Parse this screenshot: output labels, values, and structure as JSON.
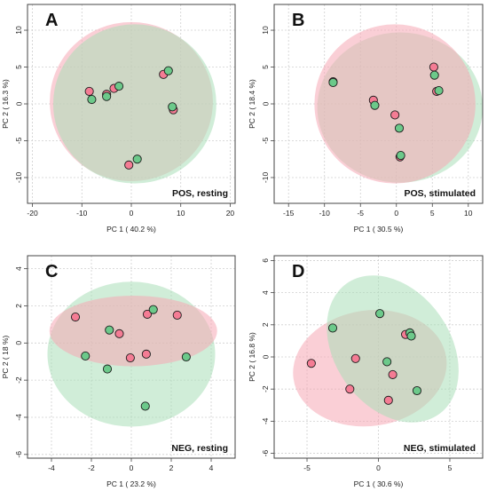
{
  "colors": {
    "group_pink": "#f47c94",
    "group_green": "#6cc98a",
    "ellipse_pink": "#f6a7b5",
    "ellipse_green": "#a9dfb8",
    "overlap": "#c8ab98"
  },
  "chart_data": [
    {
      "type": "scatter",
      "panel": "A",
      "annotation": "POS, resting",
      "xlabel": "PC 1 ( 40.2 %)",
      "ylabel": "PC 2 ( 16.3 %)",
      "xlim": [
        -21,
        21
      ],
      "ylim": [
        -13.5,
        13.5
      ],
      "xticks": [
        -20,
        -10,
        0,
        10,
        20
      ],
      "yticks": [
        -10,
        -5,
        0,
        5,
        10
      ],
      "grid": true,
      "ellipses": [
        {
          "color": "pink",
          "cx": 0.0,
          "cy": 0.3,
          "rx": 16.5,
          "ry": 10.8,
          "angle": 0
        },
        {
          "color": "green",
          "cx": 0.7,
          "cy": 0.0,
          "rx": 16.5,
          "ry": 10.8,
          "angle": 0
        }
      ],
      "series": [
        {
          "color": "pink",
          "x": [
            -8.5,
            -5,
            -3.5,
            6.5,
            8.5,
            -0.5
          ],
          "y": [
            1.7,
            1.3,
            2.1,
            4.0,
            -0.8,
            -8.3
          ]
        },
        {
          "color": "green",
          "x": [
            -8,
            -5,
            -2.5,
            7.5,
            8.3,
            1.2
          ],
          "y": [
            0.6,
            1.0,
            2.4,
            4.5,
            -0.4,
            -7.5
          ]
        }
      ]
    },
    {
      "type": "scatter",
      "panel": "B",
      "annotation": "POS, stimulated",
      "xlabel": "PC 1 ( 30.5 %)",
      "ylabel": "PC 2 ( 18.4 %)",
      "xlim": [
        -17,
        12
      ],
      "ylim": [
        -13.5,
        13.5
      ],
      "xticks": [
        -15,
        -10,
        -5,
        0,
        5,
        10
      ],
      "yticks": [
        -10,
        -5,
        0,
        5,
        10
      ],
      "grid": true,
      "ellipses": [
        {
          "color": "green",
          "cx": 0.5,
          "cy": -0.5,
          "rx": 11.5,
          "ry": 10.2,
          "angle": 0
        },
        {
          "color": "pink",
          "cx": -0.2,
          "cy": 0.0,
          "rx": 11.2,
          "ry": 10.8,
          "angle": 0
        }
      ],
      "series": [
        {
          "color": "pink",
          "x": [
            -8.8,
            -3.2,
            -0.2,
            5.2,
            5.6,
            0.5
          ],
          "y": [
            3.0,
            0.5,
            -1.5,
            5.0,
            1.7,
            -7.2
          ]
        },
        {
          "color": "green",
          "x": [
            -8.8,
            -3.0,
            0.4,
            5.3,
            5.9,
            0.6
          ],
          "y": [
            2.9,
            -0.2,
            -3.3,
            3.9,
            1.8,
            -7.0
          ]
        }
      ]
    },
    {
      "type": "scatter",
      "panel": "C",
      "annotation": "NEG, resting",
      "xlabel": "PC 1 ( 23.2 %)",
      "ylabel": "PC 2 ( 18 %)",
      "xlim": [
        -5.2,
        5.2
      ],
      "ylim": [
        -6.2,
        4.7
      ],
      "xticks": [
        -4,
        -2,
        0,
        2,
        4
      ],
      "yticks": [
        -6,
        -4,
        -2,
        0,
        2,
        4
      ],
      "grid": true,
      "ellipses": [
        {
          "color": "green",
          "cx": 0.0,
          "cy": -0.6,
          "rx": 4.2,
          "ry": 3.9,
          "angle": 0
        },
        {
          "color": "pink",
          "cx": 0.1,
          "cy": 0.65,
          "rx": 4.2,
          "ry": 1.9,
          "angle": 0
        }
      ],
      "series": [
        {
          "color": "pink",
          "x": [
            -2.8,
            -0.6,
            0.8,
            2.3,
            0.75,
            -0.05
          ],
          "y": [
            1.4,
            0.5,
            1.55,
            1.5,
            -0.6,
            -0.8
          ]
        },
        {
          "color": "green",
          "x": [
            -1.1,
            1.1,
            -2.3,
            -1.2,
            2.75,
            0.7
          ],
          "y": [
            0.7,
            1.8,
            -0.7,
            -1.4,
            -0.75,
            -3.4
          ]
        }
      ]
    },
    {
      "type": "scatter",
      "panel": "D",
      "annotation": "NEG, stimulated",
      "xlabel": "PC 1 ( 30.6 %)",
      "ylabel": "PC 2 ( 16.8 %)",
      "xlim": [
        -7.3,
        7.3
      ],
      "ylim": [
        -6.3,
        6.3
      ],
      "xticks": [
        -5,
        0,
        5
      ],
      "yticks": [
        -6,
        -4,
        -2,
        0,
        2,
        4,
        6
      ],
      "grid": true,
      "ellipses": [
        {
          "color": "pink",
          "cx": -0.6,
          "cy": -0.7,
          "rx": 5.4,
          "ry": 3.6,
          "angle": 8
        },
        {
          "color": "green",
          "cx": 1.0,
          "cy": 0.5,
          "rx": 5.6,
          "ry": 3.6,
          "angle": -55
        }
      ],
      "series": [
        {
          "color": "pink",
          "x": [
            -4.7,
            -1.6,
            -2.0,
            1.0,
            1.9,
            0.7
          ],
          "y": [
            -0.4,
            -0.1,
            -2.0,
            -1.1,
            1.4,
            -2.7
          ]
        },
        {
          "color": "green",
          "x": [
            -3.2,
            0.1,
            0.6,
            2.2,
            2.3,
            2.7
          ],
          "y": [
            1.8,
            2.7,
            -0.3,
            1.5,
            1.3,
            -2.1
          ]
        }
      ]
    }
  ]
}
